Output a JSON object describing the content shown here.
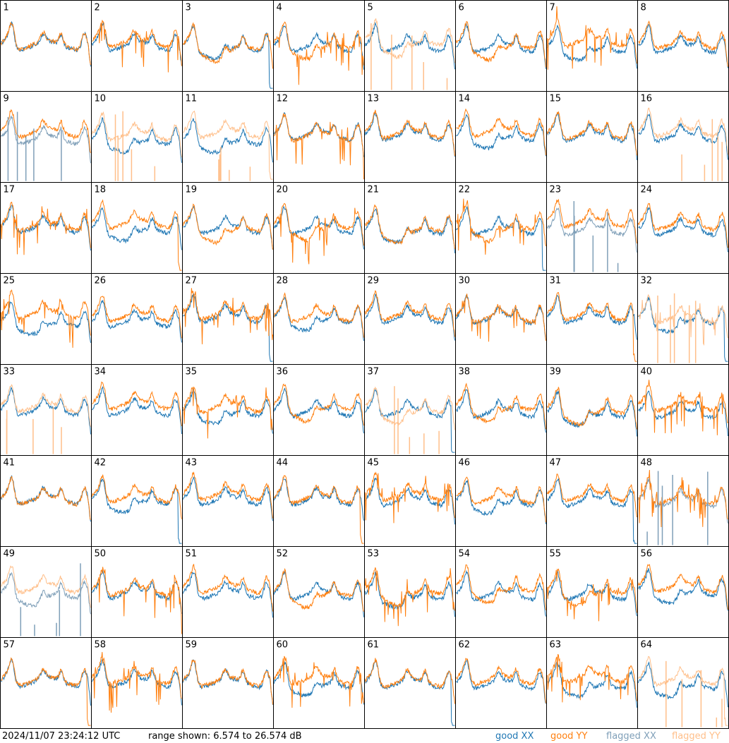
{
  "chart_data": {
    "type": "line",
    "grid": {
      "rows": 8,
      "cols": 8
    },
    "panel_labels": [
      "1",
      "2",
      "3",
      "4",
      "5",
      "6",
      "7",
      "8",
      "9",
      "10",
      "11",
      "12",
      "13",
      "14",
      "15",
      "16",
      "17",
      "18",
      "19",
      "20",
      "21",
      "22",
      "23",
      "24",
      "25",
      "26",
      "27",
      "28",
      "29",
      "30",
      "31",
      "32",
      "33",
      "34",
      "35",
      "36",
      "37",
      "38",
      "39",
      "40",
      "41",
      "42",
      "43",
      "44",
      "45",
      "46",
      "47",
      "48",
      "49",
      "50",
      "51",
      "52",
      "53",
      "54",
      "55",
      "56",
      "57",
      "58",
      "59",
      "60",
      "61",
      "62",
      "63",
      "64"
    ],
    "y_range_db": [
      6.574,
      26.574
    ],
    "series_legend": [
      "good XX",
      "good YY",
      "flagged XX",
      "flagged YY"
    ],
    "flagged_xx_panels": [
      9,
      23,
      48,
      49
    ],
    "flagged_yy_panels": [
      5,
      10,
      11,
      16,
      32,
      33,
      37,
      49,
      64
    ],
    "grid_lines": true,
    "legend_position": "bottom-right"
  },
  "footer": {
    "timestamp": "2024/11/07 23:24:12 UTC",
    "range": "range shown: 6.574 to 26.574 dB",
    "legend": {
      "good_xx": "good XX",
      "good_yy": "good YY",
      "flagged_xx": "flagged XX",
      "flagged_yy": "flagged YY"
    }
  },
  "colors": {
    "good_xx": "#1f77b4",
    "good_yy": "#ff7f0e",
    "flagged_xx": "#7f9fb8",
    "flagged_yy": "#ffbf8a"
  }
}
